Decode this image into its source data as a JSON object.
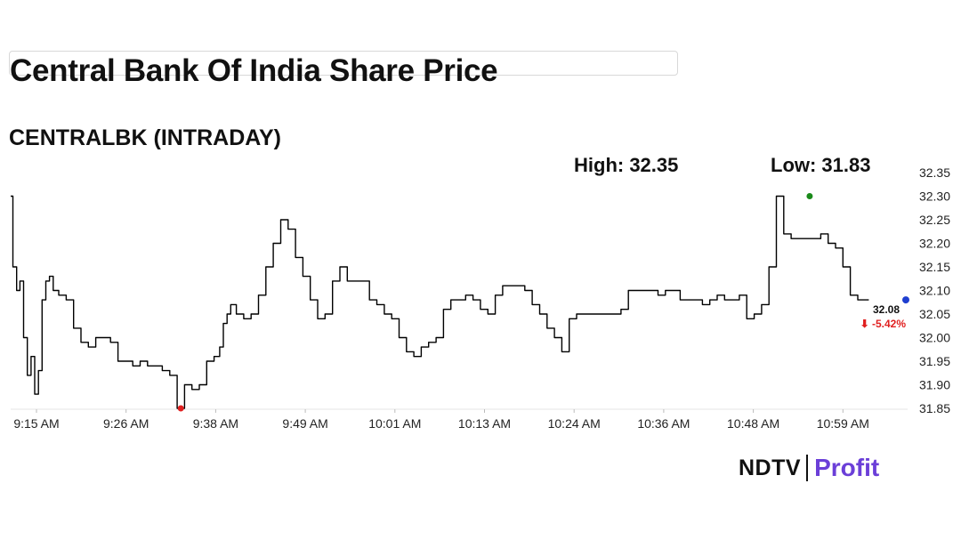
{
  "header": {
    "title": "Central Bank Of India Share Price",
    "subtitle": "CENTRALBK (INTRADAY)"
  },
  "stats": {
    "high_label": "High: 32.35",
    "low_label": "Low: 31.83"
  },
  "brand": {
    "ndtv": "NDTV",
    "profit": "Profit"
  },
  "colors": {
    "line": "#000000",
    "high_marker": "#1a8a1a",
    "low_marker": "#e02020",
    "last_marker": "#1f3fd0",
    "change_down": "#e02020",
    "grid": "#e6e6e6",
    "brand_accent": "#6b3fd8"
  },
  "chart_data": {
    "type": "line",
    "title": "CENTRALBK (INTRADAY)",
    "x_ticks": [
      "9:15 AM",
      "9:26 AM",
      "9:38 AM",
      "9:49 AM",
      "10:01 AM",
      "10:13 AM",
      "10:24 AM",
      "10:36 AM",
      "10:48 AM",
      "10:59 AM"
    ],
    "y_ticks": [
      "32.35",
      "32.30",
      "32.25",
      "32.20",
      "32.15",
      "32.10",
      "32.05",
      "32.00",
      "31.95",
      "31.90",
      "31.85"
    ],
    "xlim_minutes_from_915": [
      0,
      121
    ],
    "ylim": [
      31.85,
      32.35
    ],
    "series": [
      {
        "x_minutes_from_915": [
          0,
          0.6,
          1,
          1.5,
          2,
          2.5,
          3,
          3.5,
          4,
          4.5,
          5,
          5.5,
          6,
          7,
          8,
          9,
          10,
          11,
          12,
          13,
          14,
          15,
          16,
          17,
          18,
          19,
          20,
          21,
          22,
          23,
          24,
          25,
          26,
          27,
          28,
          28.5,
          29,
          29.5,
          30,
          31,
          32,
          33,
          34,
          35,
          36,
          37,
          38,
          39,
          40,
          41,
          42,
          43,
          44,
          45,
          46,
          47,
          48,
          49,
          50,
          51,
          52,
          53,
          54,
          55,
          56,
          57,
          58,
          59,
          60,
          61,
          62,
          63,
          64,
          65,
          66,
          67,
          68,
          69,
          70,
          71,
          72,
          73,
          74,
          75,
          76,
          77,
          78,
          79,
          80,
          81,
          82,
          83,
          84,
          85,
          86,
          87,
          88,
          89,
          90,
          91,
          92,
          93,
          94,
          95,
          96,
          97,
          98,
          99,
          100,
          101,
          102,
          103,
          104,
          105,
          106,
          107,
          108,
          109,
          110,
          111,
          112,
          113,
          114,
          115,
          116,
          117,
          118,
          119,
          120,
          121
        ],
        "values": [
          32.3,
          32.15,
          32.1,
          32.12,
          32.0,
          31.92,
          31.96,
          31.88,
          31.93,
          32.08,
          32.12,
          32.13,
          32.1,
          32.09,
          32.08,
          32.02,
          31.99,
          31.98,
          32.0,
          32.0,
          31.99,
          31.95,
          31.95,
          31.94,
          31.95,
          31.94,
          31.94,
          31.93,
          31.92,
          31.85,
          31.9,
          31.89,
          31.9,
          31.95,
          31.96,
          31.98,
          32.03,
          32.05,
          32.07,
          32.05,
          32.04,
          32.05,
          32.09,
          32.15,
          32.2,
          32.25,
          32.23,
          32.17,
          32.13,
          32.08,
          32.04,
          32.05,
          32.12,
          32.15,
          32.12,
          32.12,
          32.12,
          32.08,
          32.07,
          32.05,
          32.04,
          32.0,
          31.97,
          31.96,
          31.98,
          31.99,
          32.0,
          32.06,
          32.08,
          32.08,
          32.09,
          32.08,
          32.06,
          32.05,
          32.09,
          32.11,
          32.11,
          32.11,
          32.1,
          32.07,
          32.05,
          32.02,
          32.0,
          31.97,
          32.04,
          32.05,
          32.05,
          32.05,
          32.05,
          32.05,
          32.05,
          32.06,
          32.1,
          32.1,
          32.1,
          32.1,
          32.09,
          32.1,
          32.1,
          32.08,
          32.08,
          32.08,
          32.07,
          32.08,
          32.09,
          32.08,
          32.08,
          32.09,
          32.04,
          32.05,
          32.07,
          32.15,
          32.3,
          32.22,
          32.21,
          32.21,
          32.21,
          32.21,
          32.22,
          32.2,
          32.19,
          32.15,
          32.09,
          32.08,
          32.08
        ]
      }
    ],
    "markers": {
      "high": {
        "x_minutes_from_915": 108,
        "value": 32.3
      },
      "low": {
        "x_minutes_from_915": 23,
        "value": 31.85
      },
      "last": {
        "x_minutes_from_915": 121,
        "value": 32.08
      }
    },
    "last_price_label": "32.08",
    "change_label": "⬇ -5.42%",
    "grid": false
  }
}
